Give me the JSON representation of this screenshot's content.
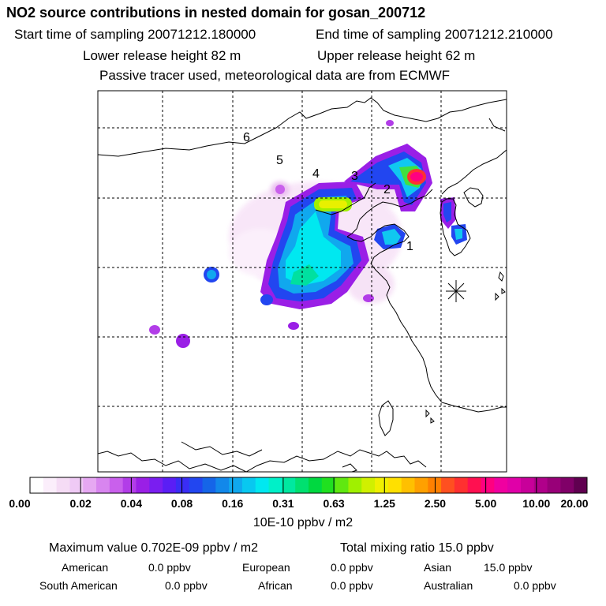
{
  "header": {
    "title": "NO2 source contributions in nested domain for gosan_200712",
    "start_label": "Start time of sampling 20071212.180000",
    "end_label": "End time of sampling 20071212.210000",
    "lower_label": "Lower release height   82 m",
    "upper_label": "Upper release height   62 m",
    "tracer_note": "Passive tracer used, meteorological data are from ECMWF"
  },
  "map": {
    "region_labels": [
      "1",
      "2",
      "3",
      "4",
      "5",
      "6"
    ],
    "receptor_marker": "receptor-star-icon"
  },
  "colorbar": {
    "tick_labels": [
      "0.00",
      "0.02",
      "0.04",
      "0.08",
      "0.16",
      "0.31",
      "0.63",
      "1.25",
      "2.50",
      "5.00",
      "10.00",
      "20.00"
    ],
    "colors": [
      "#ffffff",
      "#fbeefb",
      "#f5dcf5",
      "#efcaf5",
      "#e6a8f2",
      "#d885ef",
      "#c960ec",
      "#b23de8",
      "#9a1fe6",
      "#7a1ef0",
      "#5a1ef5",
      "#3a2df5",
      "#2246f0",
      "#1565e8",
      "#1288ea",
      "#10a8ee",
      "#08c8f0",
      "#00e8f0",
      "#00f0c8",
      "#00e8a0",
      "#00e070",
      "#00d840",
      "#20e020",
      "#60e810",
      "#a0f000",
      "#d0f000",
      "#f0f000",
      "#ffe000",
      "#ffc000",
      "#ffa000",
      "#ff8000",
      "#ff5020",
      "#ff3030",
      "#ff1050",
      "#ff0080",
      "#f000a0",
      "#e000a8",
      "#c8009a",
      "#b0008a",
      "#980078",
      "#800068",
      "#600050"
    ],
    "unit": "10E-10 ppbv / m2"
  },
  "stats": {
    "max_value": "Maximum value  0.702E-09 ppbv / m2",
    "total_ratio": "Total mixing ratio       15.0 ppbv",
    "regions": {
      "american_label": "American",
      "american_value": "0.0 ppbv",
      "european_label": "European",
      "european_value": "0.0 ppbv",
      "asian_label": "Asian",
      "asian_value": "15.0 ppbv",
      "south_american_label": "South American",
      "south_american_value": "0.0 ppbv",
      "african_label": "African",
      "african_value": "0.0 ppbv",
      "australian_label": "Australian",
      "australian_value": "0.0 ppbv"
    }
  }
}
